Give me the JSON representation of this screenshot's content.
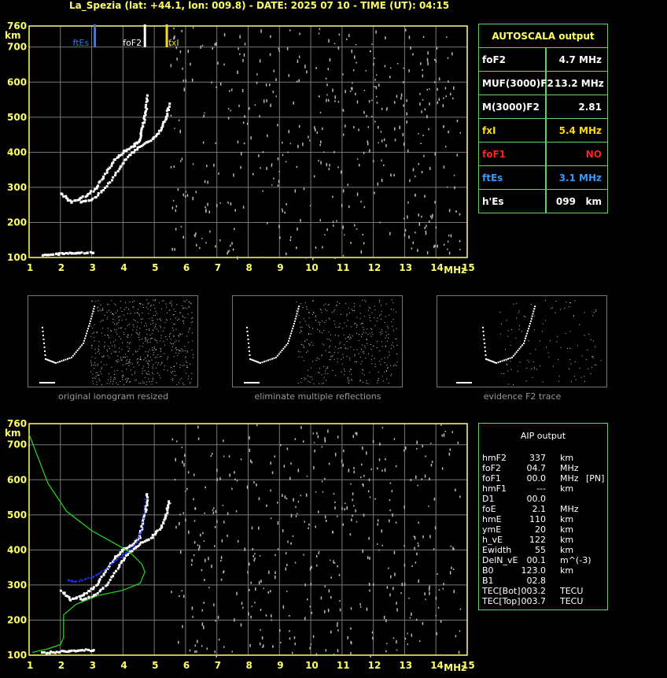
{
  "header": "La_Spezia (lat: +44.1, lon: 009.8) - DATE: 2025 07 10 - TIME (UT): 04:15",
  "chart_data": [
    {
      "type": "scatter",
      "id": "top-ionogram",
      "xlabel": "MHz",
      "ylabel": "km",
      "xlim": [
        1,
        15
      ],
      "ylim": [
        100,
        760
      ],
      "xticks": [
        1,
        2,
        3,
        4,
        5,
        6,
        7,
        8,
        9,
        10,
        11,
        12,
        13,
        14,
        15
      ],
      "yticks": [
        100,
        200,
        300,
        400,
        500,
        600,
        700,
        760
      ],
      "grid": true,
      "markers": [
        {
          "name": "ftEs",
          "x": 3.1,
          "color": "#3377ff"
        },
        {
          "name": "foF2",
          "x": 4.7,
          "color": "#ffffff"
        },
        {
          "name": "fxI",
          "x": 5.4,
          "color": "#ffdd00"
        }
      ],
      "traces": [
        {
          "name": "o-trace",
          "color": "#ffffff",
          "points": [
            [
              2.0,
              285
            ],
            [
              2.3,
              262
            ],
            [
              2.7,
              275
            ],
            [
              3.1,
              300
            ],
            [
              3.4,
              340
            ],
            [
              3.7,
              380
            ],
            [
              4.0,
              405
            ],
            [
              4.3,
              420
            ],
            [
              4.5,
              440
            ],
            [
              4.6,
              480
            ],
            [
              4.7,
              520
            ],
            [
              4.75,
              570
            ]
          ]
        },
        {
          "name": "x-trace",
          "color": "#ffffff",
          "points": [
            [
              2.6,
              262
            ],
            [
              3.0,
              270
            ],
            [
              3.4,
              300
            ],
            [
              3.8,
              350
            ],
            [
              4.1,
              390
            ],
            [
              4.5,
              420
            ],
            [
              4.9,
              440
            ],
            [
              5.2,
              470
            ],
            [
              5.35,
              505
            ],
            [
              5.45,
              545
            ]
          ]
        },
        {
          "name": "Es-trace",
          "color": "#ffffff",
          "points": [
            [
              1.4,
              110
            ],
            [
              1.8,
              112
            ],
            [
              2.2,
              115
            ],
            [
              2.6,
              117
            ],
            [
              3.1,
              118
            ]
          ]
        }
      ]
    },
    {
      "type": "scatter",
      "id": "bottom-ionogram",
      "xlabel": "MHz",
      "ylabel": "km",
      "xlim": [
        1,
        15
      ],
      "ylim": [
        100,
        760
      ],
      "xticks": [
        1,
        2,
        3,
        4,
        5,
        6,
        7,
        8,
        9,
        10,
        11,
        12,
        13,
        14,
        15
      ],
      "yticks": [
        100,
        200,
        300,
        400,
        500,
        600,
        700,
        760
      ],
      "grid": true,
      "traces": [
        {
          "name": "o-trace",
          "color": "#ffffff",
          "points": [
            [
              2.0,
              285
            ],
            [
              2.3,
              262
            ],
            [
              2.7,
              275
            ],
            [
              3.1,
              300
            ],
            [
              3.4,
              340
            ],
            [
              3.7,
              380
            ],
            [
              4.0,
              405
            ],
            [
              4.3,
              420
            ],
            [
              4.5,
              440
            ],
            [
              4.6,
              480
            ],
            [
              4.7,
              520
            ],
            [
              4.75,
              570
            ]
          ]
        },
        {
          "name": "x-trace",
          "color": "#ffffff",
          "points": [
            [
              2.6,
              262
            ],
            [
              3.0,
              270
            ],
            [
              3.4,
              300
            ],
            [
              3.8,
              350
            ],
            [
              4.1,
              390
            ],
            [
              4.5,
              420
            ],
            [
              4.9,
              440
            ],
            [
              5.2,
              470
            ],
            [
              5.35,
              505
            ],
            [
              5.45,
              545
            ]
          ]
        },
        {
          "name": "Es-trace",
          "color": "#ffffff",
          "points": [
            [
              1.4,
              110
            ],
            [
              1.8,
              112
            ],
            [
              2.2,
              115
            ],
            [
              2.6,
              117
            ],
            [
              3.1,
              118
            ]
          ]
        },
        {
          "name": "aip-trace",
          "color": "#2233ff",
          "points": [
            [
              2.2,
              315
            ],
            [
              2.5,
              312
            ],
            [
              3.0,
              325
            ],
            [
              3.4,
              345
            ],
            [
              3.8,
              375
            ],
            [
              4.1,
              395
            ],
            [
              4.4,
              420
            ],
            [
              4.6,
              470
            ],
            [
              4.7,
              560
            ]
          ]
        },
        {
          "name": "aip-profile",
          "color": "#22dd22",
          "points": [
            [
              1.0,
              730
            ],
            [
              1.6,
              590
            ],
            [
              2.2,
              510
            ],
            [
              3.0,
              455
            ],
            [
              3.6,
              425
            ],
            [
              4.2,
              395
            ],
            [
              4.6,
              360
            ],
            [
              4.7,
              337
            ],
            [
              4.55,
              305
            ],
            [
              4.0,
              285
            ],
            [
              3.2,
              270
            ],
            [
              2.5,
              245
            ],
            [
              2.1,
              215
            ],
            [
              2.1,
              180
            ],
            [
              2.1,
              150
            ],
            [
              2.0,
              130
            ],
            [
              1.6,
              118
            ],
            [
              1.1,
              108
            ]
          ]
        }
      ]
    }
  ],
  "autoscala": {
    "title": "AUTOSCALA output",
    "rows": [
      {
        "label": "foF2",
        "value": "4.7 MHz",
        "color": "#ffffff"
      },
      {
        "label": "MUF(3000)F2",
        "value": "13.2 MHz",
        "color": "#ffffff"
      },
      {
        "label": "M(3000)F2",
        "value": "2.81",
        "color": "#ffffff"
      },
      {
        "label": "fxI",
        "value": "5.4 MHz",
        "color": "#ffdd00"
      },
      {
        "label": "foF1",
        "value": "NO",
        "color": "#ff2222"
      },
      {
        "label": "ftEs",
        "value": "3.1 MHz",
        "color": "#3399ff"
      },
      {
        "label": "h'Es",
        "value": "099   km",
        "color": "#ffffff"
      }
    ]
  },
  "thumbnails": [
    {
      "caption": "original ionogram resized"
    },
    {
      "caption": "eliminate multiple reflections"
    },
    {
      "caption": "evidence F2 trace"
    }
  ],
  "aip": {
    "title": "AIP output",
    "rows": [
      {
        "label": "hmF2",
        "value": "337",
        "unit": "km",
        "extra": ""
      },
      {
        "label": "foF2",
        "value": "04.7",
        "unit": "MHz",
        "extra": ""
      },
      {
        "label": "foF1",
        "value": "00.0",
        "unit": "MHz",
        "extra": "[PN]"
      },
      {
        "label": "hmF1",
        "value": "---",
        "unit": "km",
        "extra": ""
      },
      {
        "label": "D1",
        "value": "00.0",
        "unit": "",
        "extra": ""
      },
      {
        "label": "foE",
        "value": "2.1",
        "unit": "MHz",
        "extra": ""
      },
      {
        "label": "hmE",
        "value": "110",
        "unit": "km",
        "extra": ""
      },
      {
        "label": "ymE",
        "value": "20",
        "unit": "km",
        "extra": ""
      },
      {
        "label": "h_vE",
        "value": "122",
        "unit": "km",
        "extra": ""
      },
      {
        "label": "Ewidth",
        "value": "55",
        "unit": "km",
        "extra": ""
      },
      {
        "label": "DelN_vE",
        "value": "00.1",
        "unit": "m^(-3)",
        "extra": ""
      },
      {
        "label": "B0",
        "value": "123.0",
        "unit": "km",
        "extra": ""
      },
      {
        "label": "B1",
        "value": "02.8",
        "unit": "",
        "extra": ""
      },
      {
        "label": "TEC[Bot]",
        "value": "003.2",
        "unit": "TECU",
        "extra": ""
      },
      {
        "label": "TEC[Top]",
        "value": "003.7",
        "unit": "TECU",
        "extra": ""
      }
    ]
  },
  "colors": {
    "axis": "#ffff66",
    "grid": "#777777",
    "panel_border": "#66cc66",
    "title": "#ffff66"
  }
}
